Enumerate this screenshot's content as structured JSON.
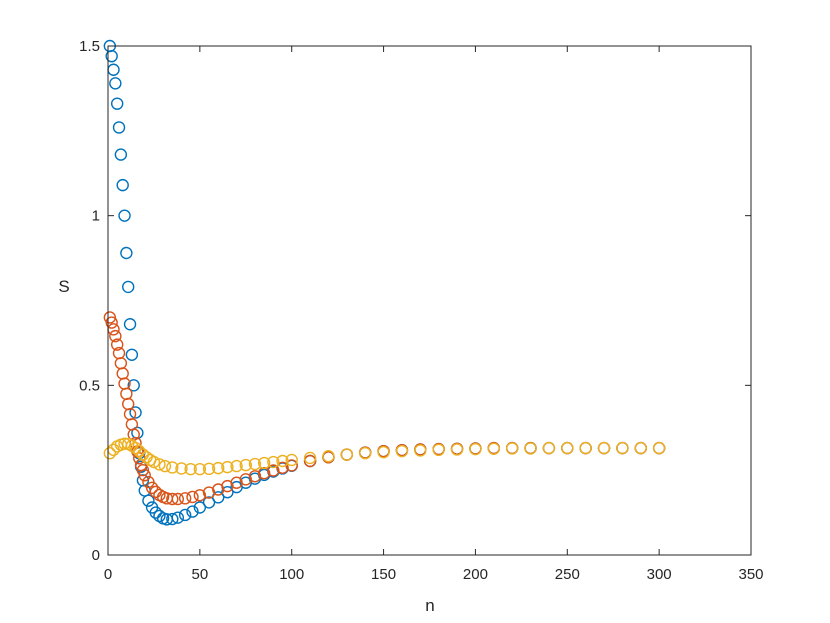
{
  "chart_data": {
    "type": "scatter",
    "title": "",
    "xlabel": "n",
    "ylabel": "S",
    "xlim": [
      0,
      350
    ],
    "ylim": [
      0,
      1.5
    ],
    "xticks": [
      0,
      50,
      100,
      150,
      200,
      250,
      300,
      350
    ],
    "yticks": [
      0,
      0.5,
      1,
      1.5
    ],
    "xtick_labels": [
      "0",
      "50",
      "100",
      "150",
      "200",
      "250",
      "300",
      "350"
    ],
    "ytick_labels": [
      "0",
      "0.5",
      "1",
      "1.5"
    ],
    "grid": false,
    "marker": "circle-open",
    "series": [
      {
        "color": "#0072BD",
        "x": [
          1,
          2,
          3,
          4,
          5,
          6,
          7,
          8,
          9,
          10,
          11,
          12,
          13,
          14,
          15,
          16,
          17,
          18,
          19,
          20,
          22,
          24,
          26,
          28,
          30,
          32,
          35,
          38,
          42,
          46,
          50,
          55,
          60,
          65,
          70,
          75,
          80,
          85,
          90,
          95,
          100,
          110,
          120,
          130,
          140,
          150,
          160,
          170,
          180,
          190,
          200,
          210,
          220,
          230,
          240,
          250,
          260,
          270,
          280,
          290,
          300
        ],
        "y": [
          1.5,
          1.47,
          1.43,
          1.39,
          1.33,
          1.26,
          1.18,
          1.09,
          1.0,
          0.89,
          0.79,
          0.68,
          0.59,
          0.5,
          0.42,
          0.36,
          0.3,
          0.26,
          0.22,
          0.19,
          0.16,
          0.14,
          0.125,
          0.115,
          0.108,
          0.105,
          0.106,
          0.11,
          0.118,
          0.128,
          0.14,
          0.155,
          0.17,
          0.185,
          0.2,
          0.213,
          0.225,
          0.236,
          0.246,
          0.255,
          0.263,
          0.277,
          0.288,
          0.296,
          0.302,
          0.306,
          0.309,
          0.311,
          0.312,
          0.313,
          0.314,
          0.315,
          0.315,
          0.315,
          0.315,
          0.315,
          0.315,
          0.315,
          0.315,
          0.315,
          0.315
        ]
      },
      {
        "color": "#D95319",
        "x": [
          1,
          2,
          3,
          4,
          5,
          6,
          7,
          8,
          9,
          10,
          11,
          12,
          13,
          14,
          15,
          16,
          17,
          18,
          19,
          20,
          22,
          24,
          26,
          28,
          30,
          32,
          35,
          38,
          42,
          46,
          50,
          55,
          60,
          65,
          70,
          75,
          80,
          85,
          90,
          95,
          100,
          110,
          120,
          130,
          140,
          150,
          160,
          170,
          180,
          190,
          200,
          210,
          220,
          230,
          240,
          250,
          260,
          270,
          280,
          290,
          300
        ],
        "y": [
          0.7,
          0.685,
          0.665,
          0.645,
          0.62,
          0.595,
          0.565,
          0.535,
          0.505,
          0.475,
          0.445,
          0.415,
          0.385,
          0.355,
          0.33,
          0.305,
          0.285,
          0.265,
          0.25,
          0.235,
          0.215,
          0.198,
          0.186,
          0.177,
          0.171,
          0.167,
          0.165,
          0.165,
          0.167,
          0.171,
          0.176,
          0.184,
          0.193,
          0.203,
          0.213,
          0.223,
          0.232,
          0.241,
          0.249,
          0.257,
          0.264,
          0.277,
          0.288,
          0.296,
          0.302,
          0.306,
          0.309,
          0.311,
          0.312,
          0.313,
          0.314,
          0.315,
          0.315,
          0.315,
          0.315,
          0.315,
          0.315,
          0.315,
          0.315,
          0.315,
          0.315
        ]
      },
      {
        "color": "#EDB120",
        "x": [
          1,
          3,
          5,
          7,
          9,
          11,
          13,
          15,
          17,
          19,
          21,
          23,
          25,
          28,
          31,
          35,
          40,
          45,
          50,
          55,
          60,
          65,
          70,
          75,
          80,
          85,
          90,
          95,
          100,
          110,
          120,
          130,
          140,
          150,
          160,
          170,
          180,
          190,
          200,
          210,
          220,
          230,
          240,
          250,
          260,
          270,
          280,
          290,
          300
        ],
        "y": [
          0.3,
          0.31,
          0.32,
          0.325,
          0.328,
          0.327,
          0.322,
          0.315,
          0.306,
          0.296,
          0.288,
          0.28,
          0.274,
          0.267,
          0.262,
          0.258,
          0.255,
          0.253,
          0.253,
          0.254,
          0.256,
          0.259,
          0.262,
          0.265,
          0.268,
          0.271,
          0.274,
          0.277,
          0.28,
          0.286,
          0.291,
          0.296,
          0.3,
          0.303,
          0.306,
          0.308,
          0.31,
          0.311,
          0.312,
          0.313,
          0.314,
          0.314,
          0.315,
          0.315,
          0.315,
          0.315,
          0.315,
          0.315,
          0.315
        ]
      }
    ]
  }
}
